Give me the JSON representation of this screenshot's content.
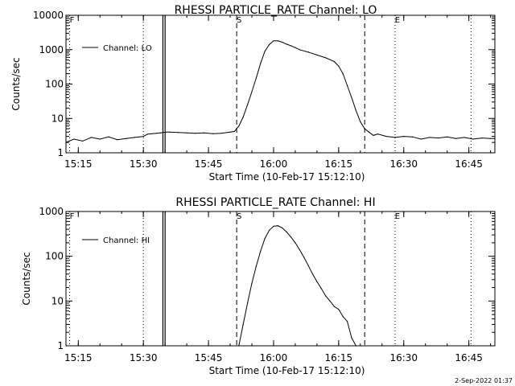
{
  "chart_data": [
    {
      "type": "line",
      "title": "RHESSI PARTICLE_RATE Channel: LO",
      "xlabel": "Start Time (10-Feb-17 15:12:10)",
      "ylabel": "Counts/sec",
      "yscale": "log",
      "ylim": [
        1,
        10000
      ],
      "xlim": [
        "15:12:10",
        "16:51:00"
      ],
      "x_ticks": [
        "15:15",
        "15:30",
        "15:45",
        "16:00",
        "16:15",
        "16:30",
        "16:45"
      ],
      "y_ticks": [
        "1",
        "10",
        "100",
        "1000",
        "10000"
      ],
      "legend": {
        "position": "top-left",
        "entries": [
          "Channel: LO"
        ]
      },
      "series": [
        {
          "name": "Channel: LO",
          "x": [
            "15:12:10",
            "15:14",
            "15:16",
            "15:18",
            "15:20",
            "15:22",
            "15:24",
            "15:26",
            "15:28",
            "15:30",
            "15:31",
            "15:33",
            "15:34",
            "15:35",
            "15:36",
            "15:38",
            "15:40",
            "15:42",
            "15:44",
            "15:46",
            "15:48",
            "15:50",
            "15:51",
            "15:52",
            "15:53",
            "15:54",
            "15:55",
            "15:56",
            "15:57",
            "15:58",
            "15:59",
            "16:00",
            "16:01",
            "16:02",
            "16:03",
            "16:04",
            "16:05",
            "16:06",
            "16:08",
            "16:10",
            "16:12",
            "16:14",
            "16:15",
            "16:16",
            "16:17",
            "16:18",
            "16:19",
            "16:20",
            "16:21",
            "16:22",
            "16:23",
            "16:24",
            "16:26",
            "16:28",
            "16:30",
            "16:32",
            "16:34",
            "16:36",
            "16:38",
            "16:40",
            "16:42",
            "16:44",
            "16:46",
            "16:48",
            "16:50",
            "16:51"
          ],
          "y": [
            2.0,
            2.5,
            2.2,
            2.8,
            2.5,
            2.9,
            2.4,
            2.6,
            2.8,
            3.0,
            3.5,
            3.7,
            3.8,
            4.0,
            4.0,
            3.9,
            3.8,
            3.7,
            3.8,
            3.6,
            3.7,
            4.0,
            4.2,
            6,
            11,
            25,
            60,
            150,
            400,
            900,
            1400,
            1800,
            1800,
            1650,
            1450,
            1300,
            1150,
            1000,
            850,
            700,
            580,
            450,
            330,
            200,
            90,
            40,
            17,
            8,
            5,
            4,
            3.2,
            3.5,
            3.0,
            2.8,
            3.0,
            2.9,
            2.5,
            2.8,
            2.7,
            2.9,
            2.6,
            2.8,
            2.5,
            2.7,
            2.6,
            2.6
          ]
        }
      ],
      "markers": [
        {
          "label": "F",
          "x": "15:13:00",
          "style": "dotted"
        },
        {
          "label": "",
          "x": "15:30:00",
          "style": "dotted"
        },
        {
          "label": "",
          "x": "15:34:30",
          "style": "solid"
        },
        {
          "label": "",
          "x": "15:35:00",
          "style": "solid"
        },
        {
          "label": "S",
          "x": "15:51:30",
          "style": "dashed"
        },
        {
          "label": "",
          "x": "16:21:00",
          "style": "dashed"
        },
        {
          "label": "E",
          "x": "16:28:00",
          "style": "dotted"
        },
        {
          "label": "",
          "x": "16:45:30",
          "style": "dotted"
        }
      ]
    },
    {
      "type": "line",
      "title": "RHESSI PARTICLE_RATE Channel: HI",
      "xlabel": "Start Time (10-Feb-17 15:12:10)",
      "ylabel": "Counts/sec",
      "yscale": "log",
      "ylim": [
        1,
        1000
      ],
      "xlim": [
        "15:12:10",
        "16:51:00"
      ],
      "x_ticks": [
        "15:15",
        "15:30",
        "15:45",
        "16:00",
        "16:15",
        "16:30",
        "16:45"
      ],
      "y_ticks": [
        "1",
        "10",
        "100",
        "1000"
      ],
      "legend": {
        "position": "top-left",
        "entries": [
          "Channel: HI"
        ]
      },
      "series": [
        {
          "name": "Channel: HI",
          "x": [
            "15:52:00",
            "15:53",
            "15:54",
            "15:55",
            "15:56",
            "15:57",
            "15:58",
            "15:59",
            "16:00",
            "16:01",
            "16:02",
            "16:03",
            "16:04",
            "16:05",
            "16:06",
            "16:07",
            "16:08",
            "16:09",
            "16:10",
            "16:11",
            "16:12",
            "16:13",
            "16:14",
            "16:15",
            "16:16",
            "16:17",
            "16:18",
            "16:19"
          ],
          "y": [
            1.0,
            3,
            9,
            25,
            60,
            130,
            250,
            380,
            470,
            480,
            430,
            350,
            270,
            200,
            140,
            95,
            62,
            40,
            27,
            19,
            13,
            10,
            7.5,
            6.5,
            4.5,
            3.5,
            1.5,
            1.0
          ]
        }
      ],
      "markers": [
        {
          "label": "F",
          "x": "15:13:00",
          "style": "dotted"
        },
        {
          "label": "",
          "x": "15:30:00",
          "style": "dotted"
        },
        {
          "label": "",
          "x": "15:34:30",
          "style": "solid"
        },
        {
          "label": "",
          "x": "15:35:00",
          "style": "solid"
        },
        {
          "label": "S",
          "x": "15:51:30",
          "style": "dashed"
        },
        {
          "label": "",
          "x": "16:21:00",
          "style": "dashed"
        },
        {
          "label": "E",
          "x": "16:28:00",
          "style": "dotted"
        },
        {
          "label": "",
          "x": "16:45:30",
          "style": "dotted"
        }
      ]
    }
  ],
  "timestamp": "2-Sep-2022 01:37"
}
